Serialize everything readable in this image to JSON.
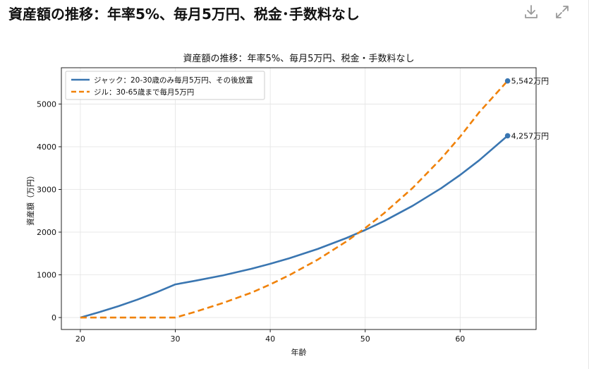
{
  "page": {
    "title": "資産額の推移：年率5%、毎月5万円、税金･手数料なし",
    "download_icon": "download-icon",
    "expand_icon": "expand-icon"
  },
  "chart_data": {
    "type": "line",
    "title": "資産額の推移：年率5%、毎月5万円、税金・手数料なし",
    "xlabel": "年齢",
    "ylabel": "資産額（万円）",
    "xlim": [
      18,
      68
    ],
    "ylim": [
      -280,
      5850
    ],
    "xticks": [
      20,
      30,
      40,
      50,
      60
    ],
    "yticks": [
      0,
      1000,
      2000,
      3000,
      4000,
      5000
    ],
    "grid": true,
    "legend_position": "upper-left",
    "series": [
      {
        "name": "ジャック：20-30歳のみ毎月5万円、その後放置",
        "color": "#3a76b1",
        "style": "solid",
        "x": [
          20,
          22,
          24,
          26,
          28,
          30,
          32,
          35,
          38,
          40,
          42,
          45,
          48,
          50,
          52,
          55,
          58,
          60,
          62,
          65
        ],
        "y": [
          0,
          126,
          265,
          419,
          589,
          776,
          856,
          985,
          1141,
          1258,
          1387,
          1606,
          1859,
          2050,
          2260,
          2616,
          3028,
          3338,
          3681,
          4257
        ],
        "end_label": "4,257万円"
      },
      {
        "name": "ジル：30-65歳まで毎月5万円",
        "color": "#f0820a",
        "style": "dashed",
        "x": [
          20,
          25,
          30,
          32,
          35,
          38,
          40,
          42,
          45,
          48,
          50,
          52,
          55,
          58,
          60,
          62,
          65
        ],
        "y": [
          0,
          0,
          0,
          126,
          340,
          581,
          776,
          991,
          1356,
          1778,
          2094,
          2444,
          3035,
          3720,
          4235,
          4804,
          5542
        ],
        "end_label": "5,542万円"
      }
    ]
  }
}
